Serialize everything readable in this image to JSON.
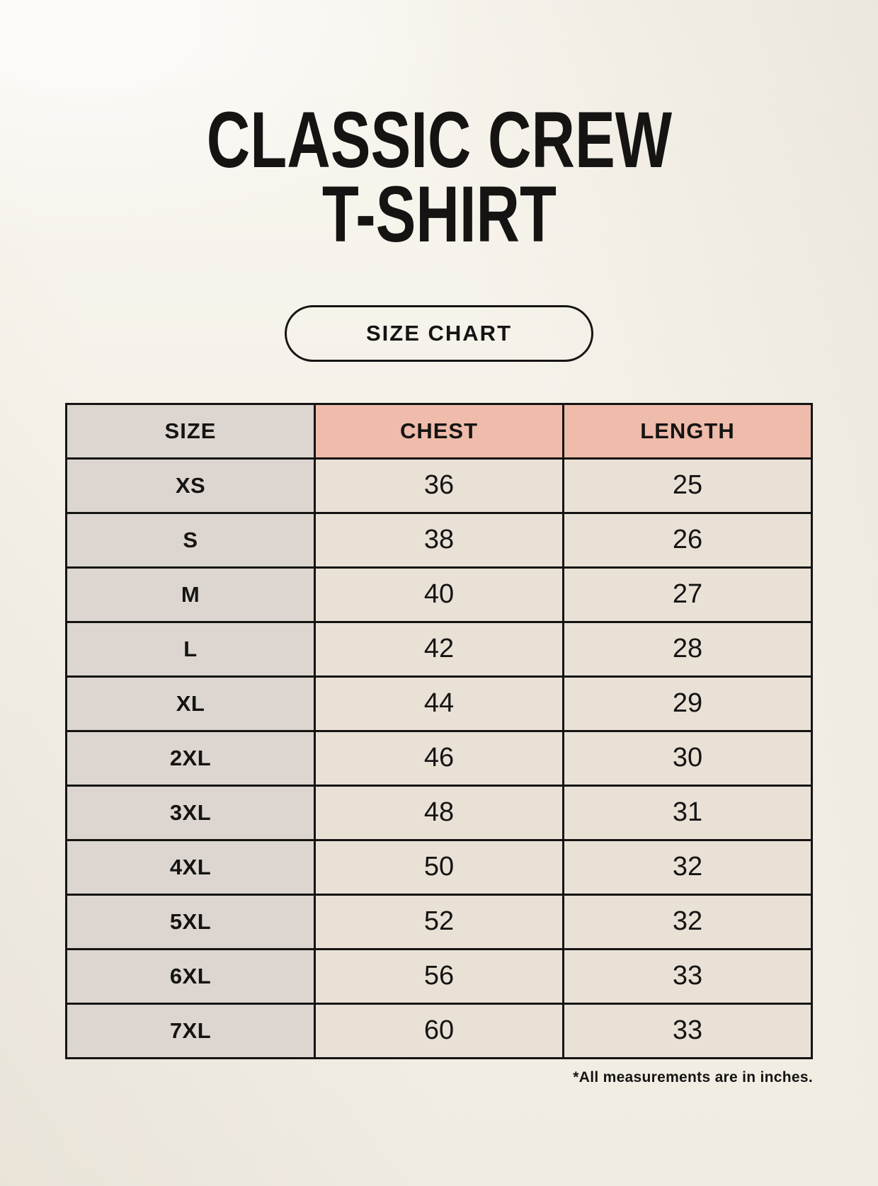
{
  "header": {
    "title_line1": "CLASSIC CREW",
    "title_line2": "T-SHIRT",
    "badge_label": "SIZE CHART"
  },
  "table": {
    "headers": [
      "SIZE",
      "CHEST",
      "LENGTH"
    ],
    "rows": [
      [
        "XS",
        "36",
        "25"
      ],
      [
        "S",
        "38",
        "26"
      ],
      [
        "M",
        "40",
        "27"
      ],
      [
        "L",
        "42",
        "28"
      ],
      [
        "XL",
        "44",
        "29"
      ],
      [
        "2XL",
        "46",
        "30"
      ],
      [
        "3XL",
        "48",
        "31"
      ],
      [
        "4XL",
        "50",
        "32"
      ],
      [
        "5XL",
        "52",
        "32"
      ],
      [
        "6XL",
        "56",
        "33"
      ],
      [
        "7XL",
        "60",
        "33"
      ]
    ]
  },
  "footnote": "*All measurements are in inches.",
  "colors": {
    "page_background": "#f6f2e9",
    "header_accent": "#efbbaa",
    "size_column_background": "#ddd6d0",
    "cell_background": "#e9e1d6",
    "border": "#151413",
    "text": "#151413"
  },
  "chart_data": {
    "type": "table",
    "title": "CLASSIC CREW T-SHIRT — SIZE CHART",
    "columns": [
      "SIZE",
      "CHEST",
      "LENGTH"
    ],
    "rows": [
      [
        "XS",
        36,
        25
      ],
      [
        "S",
        38,
        26
      ],
      [
        "M",
        40,
        27
      ],
      [
        "L",
        42,
        28
      ],
      [
        "XL",
        44,
        29
      ],
      [
        "2XL",
        46,
        30
      ],
      [
        "3XL",
        48,
        31
      ],
      [
        "4XL",
        50,
        32
      ],
      [
        "5XL",
        52,
        32
      ],
      [
        "6XL",
        56,
        33
      ],
      [
        "7XL",
        60,
        33
      ]
    ],
    "units": "inches"
  }
}
